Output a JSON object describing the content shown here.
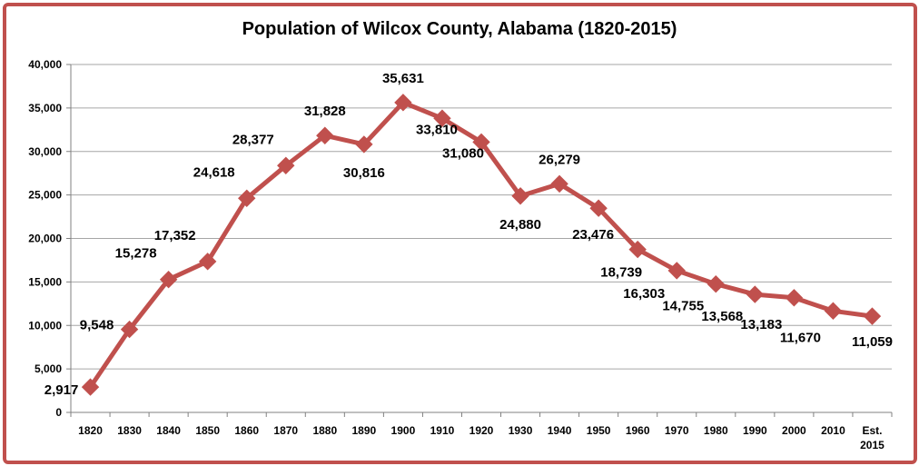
{
  "chart_data": {
    "type": "line",
    "title": "Population of Wilcox County, Alabama (1820-2015)",
    "xlabel": "",
    "ylabel": "",
    "categories": [
      "1820",
      "1830",
      "1840",
      "1850",
      "1860",
      "1870",
      "1880",
      "1890",
      "1900",
      "1910",
      "1920",
      "1930",
      "1940",
      "1950",
      "1960",
      "1970",
      "1980",
      "1990",
      "2000",
      "2010",
      "Est. 2015"
    ],
    "category_lines": [
      [
        "1820"
      ],
      [
        "1830"
      ],
      [
        "1840"
      ],
      [
        "1850"
      ],
      [
        "1860"
      ],
      [
        "1870"
      ],
      [
        "1880"
      ],
      [
        "1890"
      ],
      [
        "1900"
      ],
      [
        "1910"
      ],
      [
        "1920"
      ],
      [
        "1930"
      ],
      [
        "1940"
      ],
      [
        "1950"
      ],
      [
        "1960"
      ],
      [
        "1970"
      ],
      [
        "1980"
      ],
      [
        "1990"
      ],
      [
        "2000"
      ],
      [
        "2010"
      ],
      [
        "Est.",
        "2015"
      ]
    ],
    "series": [
      {
        "values": [
          2917,
          9548,
          15278,
          17352,
          24618,
          28377,
          31828,
          30816,
          35631,
          33810,
          31080,
          24880,
          26279,
          23476,
          18739,
          16303,
          14755,
          13568,
          13183,
          11670,
          11059
        ],
        "data_labels": [
          "2,917",
          "9,548",
          "15,278",
          "17,352",
          "24,618",
          "28,377",
          "31,828",
          "30,816",
          "35,631",
          "33,810",
          "31,080",
          "24,880",
          "26,279",
          "23,476",
          "18,739",
          "16,303",
          "14,755",
          "13,568",
          "13,183",
          "11,670",
          "11,059"
        ]
      }
    ],
    "ylim": [
      0,
      40000
    ],
    "yticks": [
      0,
      5000,
      10000,
      15000,
      20000,
      25000,
      30000,
      35000,
      40000
    ],
    "ytick_labels": [
      "0",
      "5,000",
      "10,000",
      "15,000",
      "20,000",
      "25,000",
      "30,000",
      "35,000",
      "40,000"
    ],
    "grid": "horizontal",
    "legend": "none",
    "colors": {
      "line": "#c0504d",
      "marker": "#c0504d",
      "frame": "#c0504d",
      "grid": "#a6a6a6"
    }
  }
}
